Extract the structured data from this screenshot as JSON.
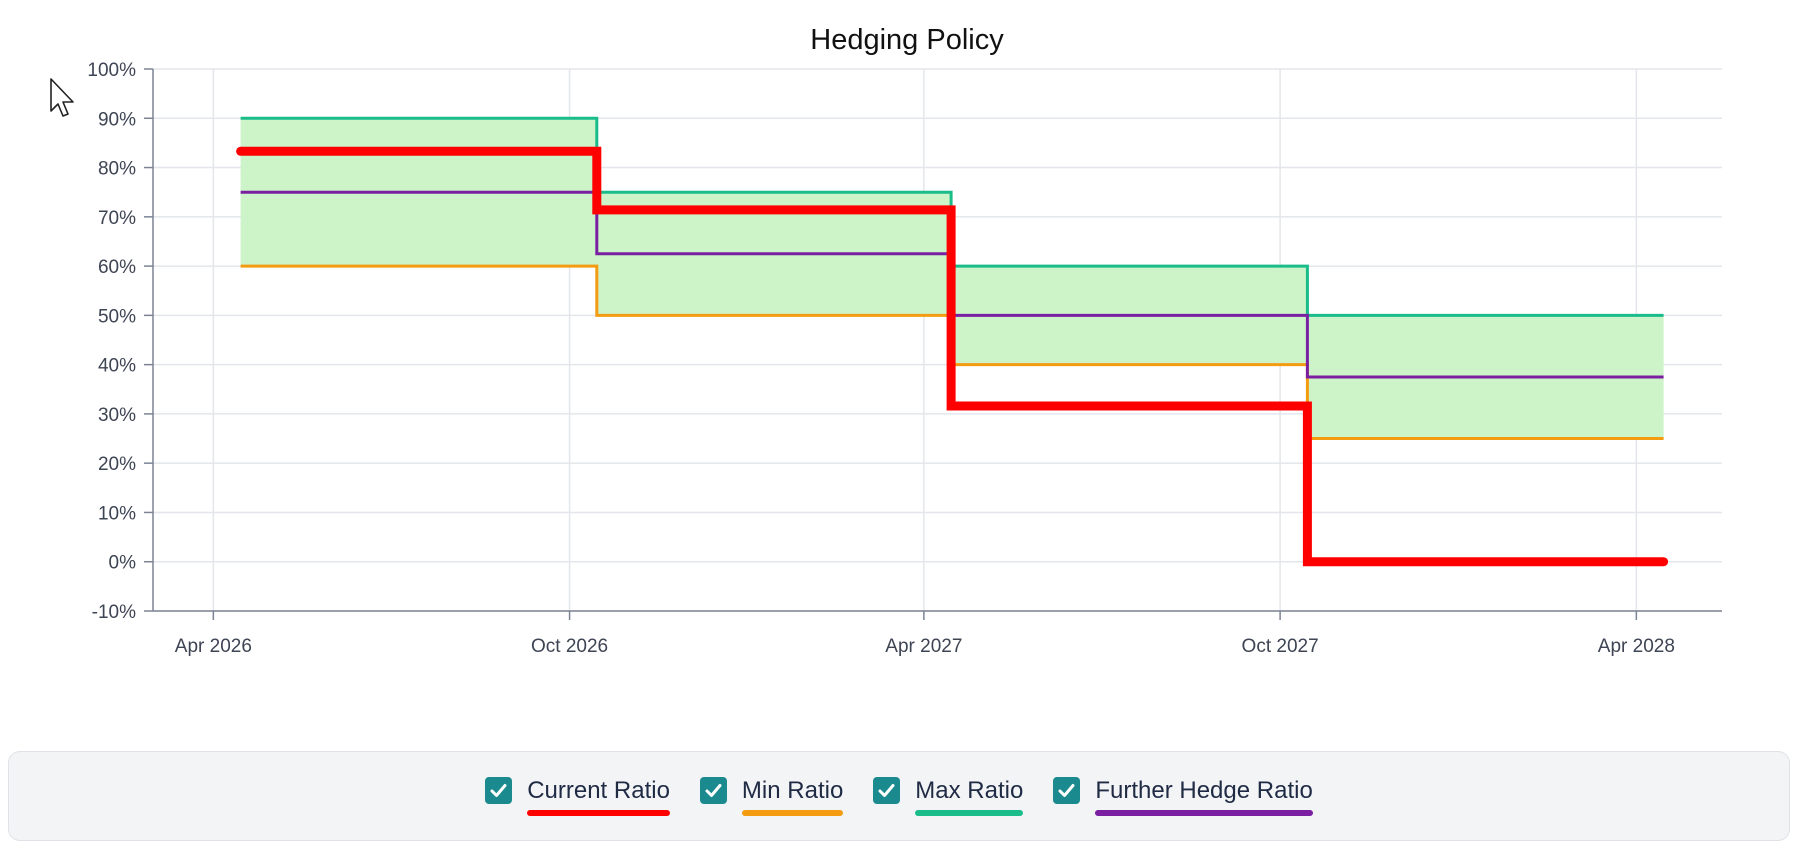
{
  "chart_data": {
    "type": "line",
    "title": "Hedging Policy",
    "xlabel": "",
    "ylabel": "",
    "x_axis": {
      "type": "date",
      "range": [
        "2026-03-01",
        "2028-05-15"
      ],
      "ticks": [
        {
          "date": "2026-04-01",
          "label": "Apr 2026"
        },
        {
          "date": "2026-10-01",
          "label": "Oct 2026"
        },
        {
          "date": "2027-04-01",
          "label": "Apr 2027"
        },
        {
          "date": "2027-10-01",
          "label": "Oct 2027"
        },
        {
          "date": "2028-04-01",
          "label": "Apr 2028"
        }
      ]
    },
    "y_axis": {
      "range": [
        -10,
        100
      ],
      "ticks": [
        {
          "value": 100,
          "label": "100%"
        },
        {
          "value": 90,
          "label": "90%"
        },
        {
          "value": 80,
          "label": "80%"
        },
        {
          "value": 70,
          "label": "70%"
        },
        {
          "value": 60,
          "label": "60%"
        },
        {
          "value": 50,
          "label": "50%"
        },
        {
          "value": 40,
          "label": "40%"
        },
        {
          "value": 30,
          "label": "30%"
        },
        {
          "value": 20,
          "label": "20%"
        },
        {
          "value": 10,
          "label": "10%"
        },
        {
          "value": 0,
          "label": "0%"
        },
        {
          "value": -10,
          "label": "-10%"
        }
      ]
    },
    "grid": true,
    "step": "after",
    "x": [
      "2026-04-15",
      "2026-10-15",
      "2027-04-15",
      "2027-10-15",
      "2028-04-15"
    ],
    "series": [
      {
        "name": "Current Ratio",
        "color": "#ff0000",
        "values": [
          83.3,
          71.4,
          31.6,
          0,
          0
        ]
      },
      {
        "name": "Min Ratio",
        "color": "#f39c12",
        "values": [
          60,
          50,
          40,
          25,
          25
        ]
      },
      {
        "name": "Max Ratio",
        "color": "#1abc8a",
        "values": [
          90,
          75,
          60,
          50,
          50
        ]
      },
      {
        "name": "Further Hedge Ratio",
        "color": "#7b1fa2",
        "values": [
          75,
          62.5,
          50,
          37.5,
          37.5
        ]
      }
    ],
    "band": {
      "between": [
        "Min Ratio",
        "Max Ratio"
      ],
      "color": "#cdf3c8"
    }
  },
  "legend": {
    "items": [
      {
        "label": "Current Ratio",
        "color": "#ff0000",
        "checked": true
      },
      {
        "label": "Min Ratio",
        "color": "#f39c12",
        "checked": true
      },
      {
        "label": "Max Ratio",
        "color": "#1abc8a",
        "checked": true
      },
      {
        "label": "Further Hedge Ratio",
        "color": "#7b1fa2",
        "checked": true
      }
    ],
    "checkbox_color": "#1b8a8f"
  },
  "icons": {
    "cursor": "mouse-pointer-icon",
    "checkbox": "checkmark-icon"
  }
}
